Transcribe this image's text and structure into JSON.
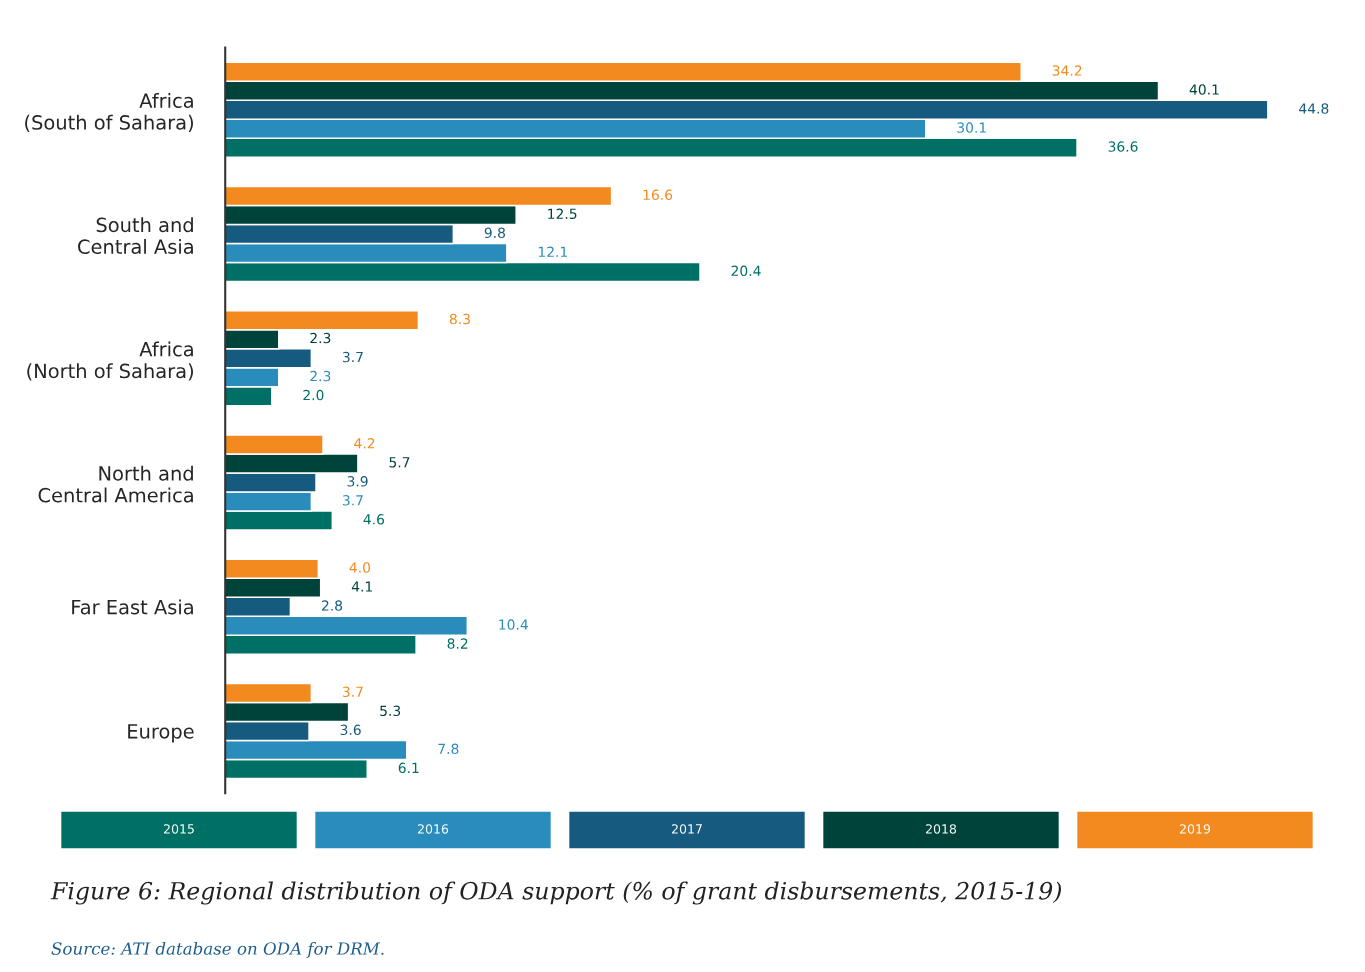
{
  "chart_data": {
    "type": "bar",
    "orientation": "horizontal",
    "title": "Figure 6: Regional distribution of ODA support (% of grant disbursements, 2015-19)",
    "annotations": [
      "Source: ATI database on ODA for DRM."
    ],
    "categories": [
      "Africa\n(South of Sahara)",
      "South and\nCentral Asia",
      "Africa\n(North of Sahara)",
      "North and\nCentral America",
      "Far East Asia",
      "Europe"
    ],
    "series": [
      {
        "name": "2015",
        "color": "#007064",
        "values": [
          36.6,
          20.4,
          2.0,
          4.6,
          8.2,
          6.1
        ],
        "value_labels": [
          "36.6",
          "20.4",
          "2.0",
          "4.6",
          "8.2",
          "6.1"
        ]
      },
      {
        "name": "2016",
        "color": "#2a8cbb",
        "values": [
          30.1,
          12.1,
          2.3,
          3.7,
          10.4,
          7.8
        ]
      },
      {
        "name": "2017",
        "color": "#165a80",
        "values": [
          44.8,
          9.8,
          3.7,
          3.9,
          2.8,
          3.6
        ]
      },
      {
        "name": "2018",
        "color": "#00433b",
        "values": [
          40.1,
          12.5,
          2.3,
          5.7,
          4.1,
          5.3
        ]
      },
      {
        "name": "2019",
        "color": "#f28a20",
        "values": [
          34.2,
          16.6,
          8.3,
          4.2,
          4.0,
          3.7
        ],
        "value_labels": [
          "34.2",
          "16.6",
          "8.3",
          "4.2",
          "4.0",
          "3.7"
        ]
      }
    ],
    "tick_labels": "y",
    "data_labels": true,
    "legend": "bottom",
    "grid": false
  }
}
